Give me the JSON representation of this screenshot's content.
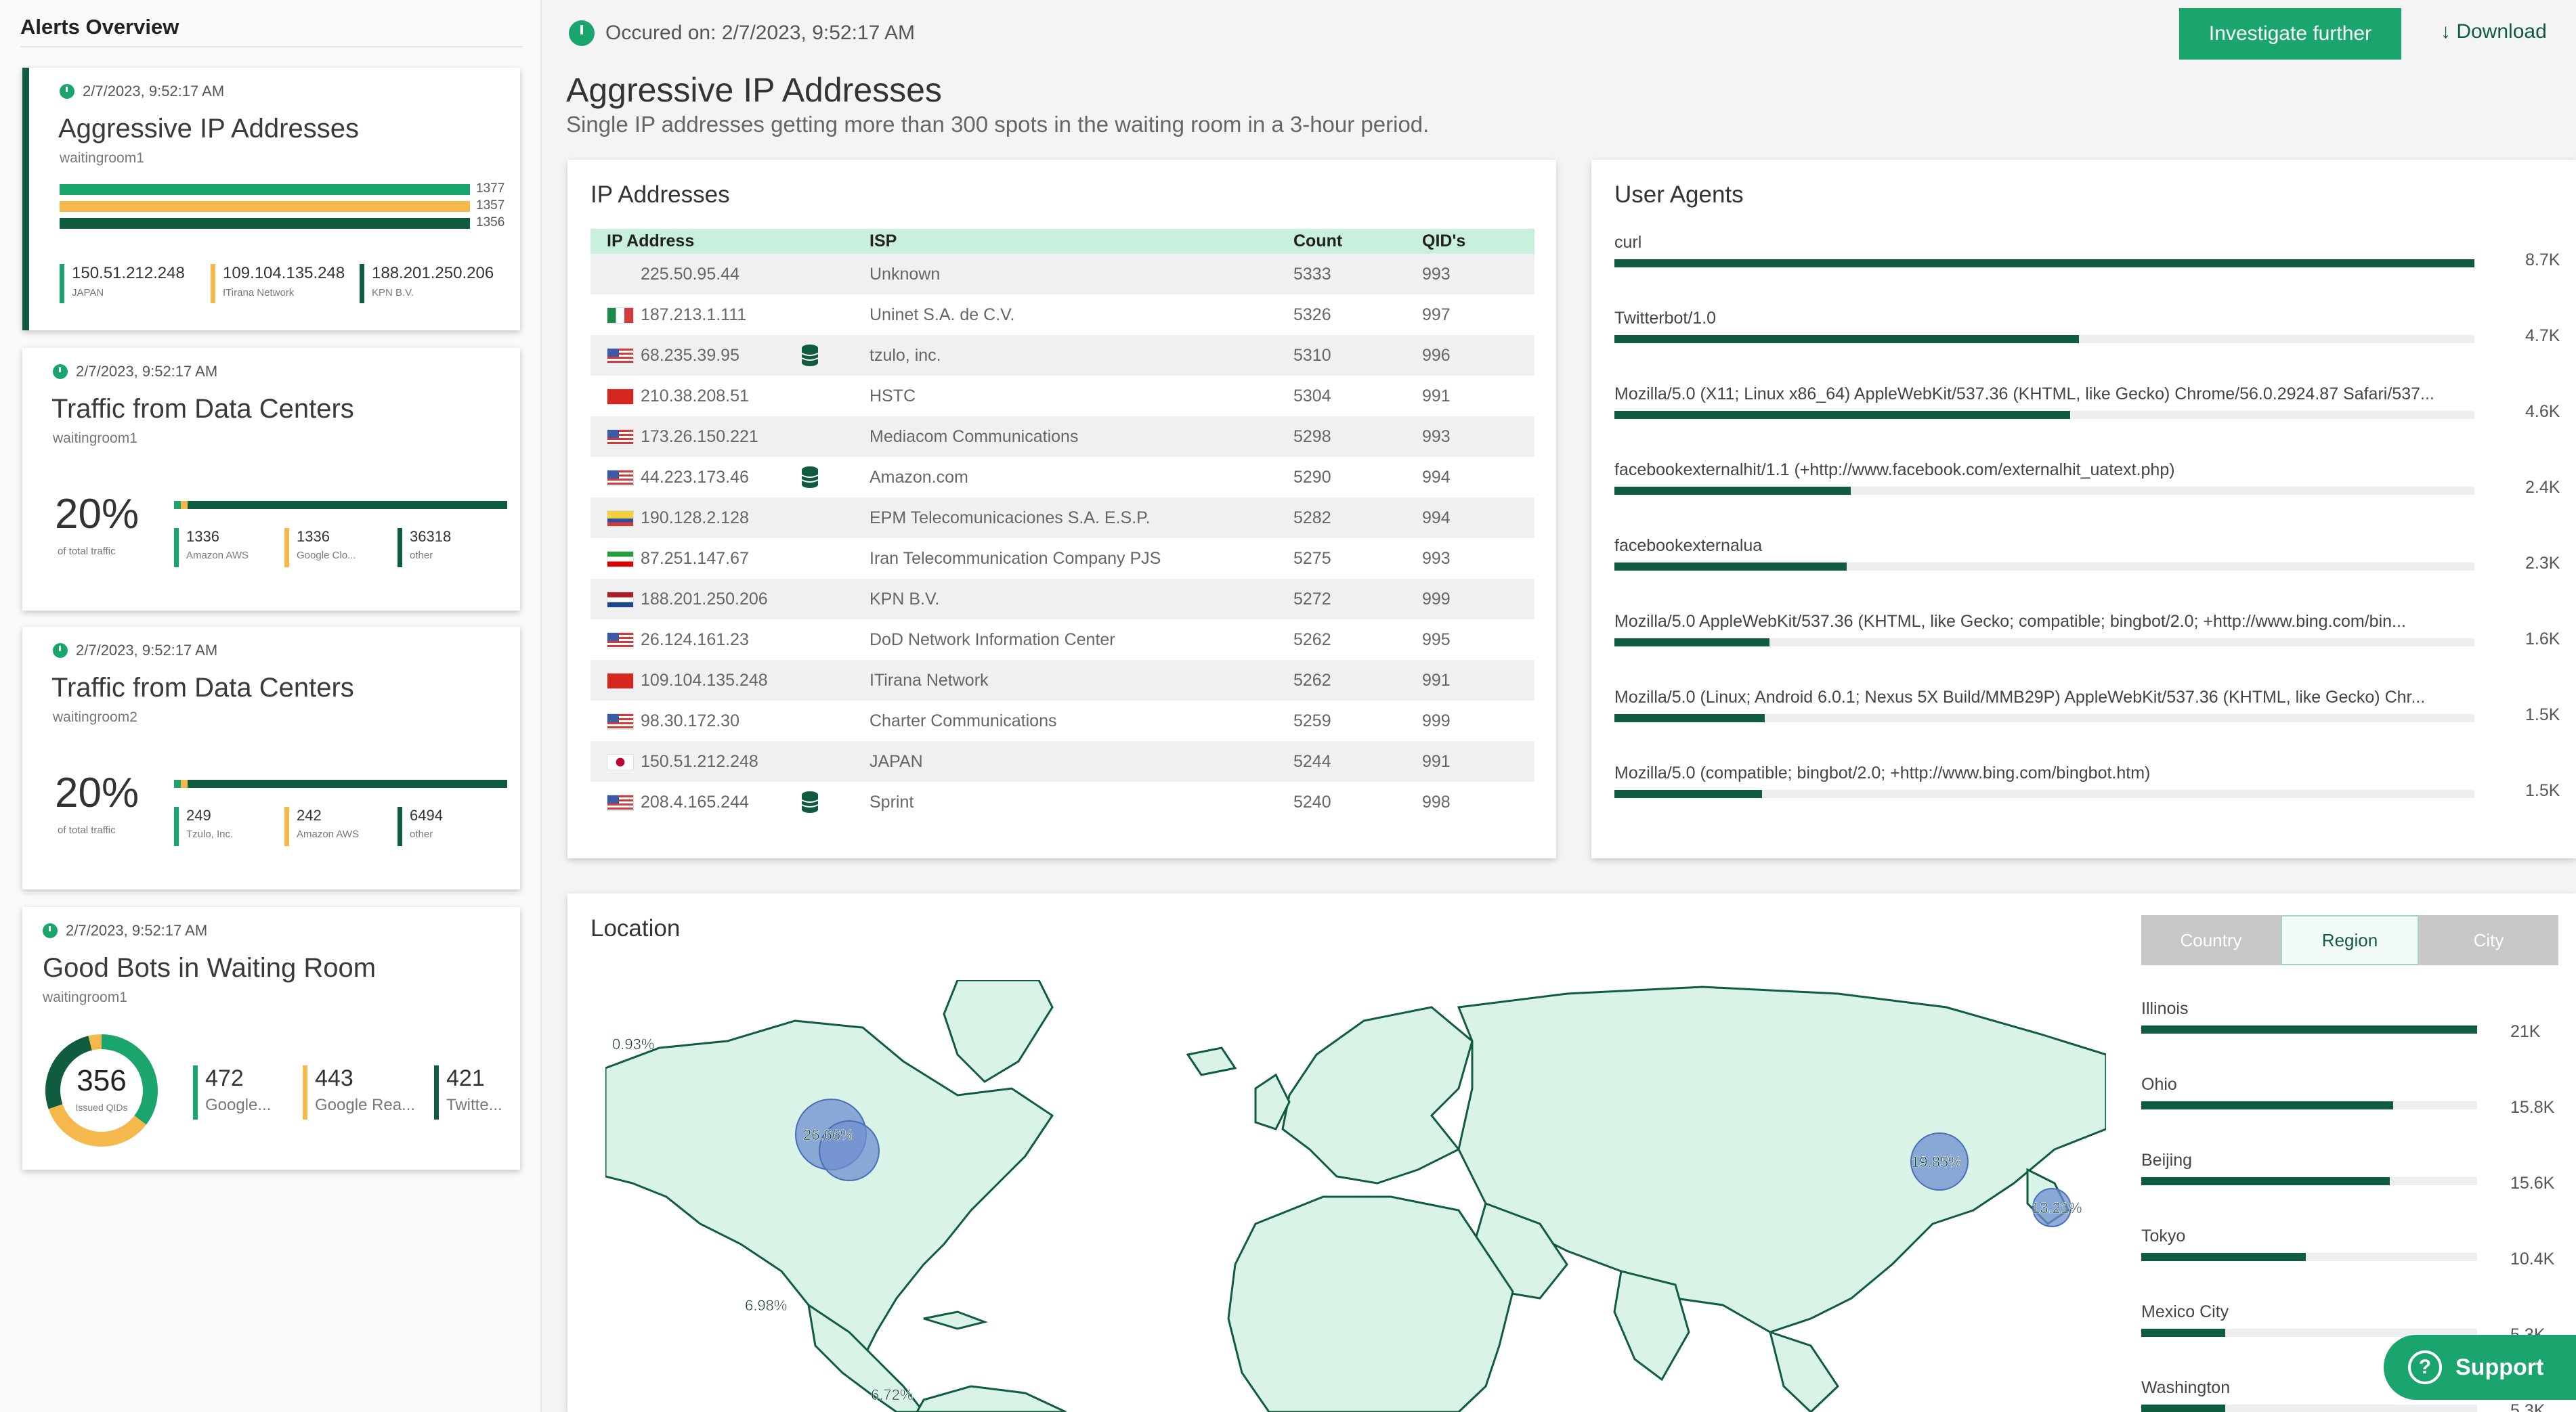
{
  "sidebar": {
    "title": "Alerts Overview",
    "cards": [
      {
        "time": "2/7/2023, 9:52:17 AM",
        "title": "Aggressive IP Addresses",
        "sub": "waitingroom1",
        "bars": [
          {
            "value": 1377,
            "label": "1377",
            "color": "#1aa56f"
          },
          {
            "value": 1357,
            "label": "1357",
            "color": "#f5b84d"
          },
          {
            "value": 1356,
            "label": "1356",
            "color": "#0f5c3e"
          }
        ],
        "stats": [
          {
            "v1": "150.51.212.248",
            "v2": "JAPAN",
            "color": "#1aa56f"
          },
          {
            "v1": "109.104.135.248",
            "v2": "ITirana Network",
            "color": "#f5b84d"
          },
          {
            "v1": "188.201.250.206",
            "v2": "KPN B.V.",
            "color": "#0f5c3e"
          }
        ]
      },
      {
        "time": "2/7/2023, 9:52:17 AM",
        "title": "Traffic from Data Centers",
        "sub": "waitingroom1",
        "pct": "20%",
        "pct_caption": "of total traffic",
        "stats": [
          {
            "v1": "1336",
            "v2": "Amazon AWS",
            "color": "#1aa56f"
          },
          {
            "v1": "1336",
            "v2": "Google Clo...",
            "color": "#f5b84d"
          },
          {
            "v1": "36318",
            "v2": "other",
            "color": "#0f5c3e"
          }
        ]
      },
      {
        "time": "2/7/2023, 9:52:17 AM",
        "title": "Traffic from Data Centers",
        "sub": "waitingroom2",
        "pct": "20%",
        "pct_caption": "of total traffic",
        "stats": [
          {
            "v1": "249",
            "v2": "Tzulo, Inc.",
            "color": "#1aa56f"
          },
          {
            "v1": "242",
            "v2": "Amazon AWS",
            "color": "#f5b84d"
          },
          {
            "v1": "6494",
            "v2": "other",
            "color": "#0f5c3e"
          }
        ]
      },
      {
        "time": "2/7/2023, 9:52:17 AM",
        "title": "Good Bots in Waiting Room",
        "sub": "waitingroom1",
        "donut_value": "356",
        "donut_caption": "Issued QIDs",
        "stats": [
          {
            "v1": "472",
            "v2": "Google...",
            "color": "#1aa56f"
          },
          {
            "v1": "443",
            "v2": "Google Rea...",
            "color": "#f5b84d"
          },
          {
            "v1": "421",
            "v2": "Twitte...",
            "color": "#0f5c3e"
          }
        ]
      }
    ]
  },
  "header": {
    "occurred": "Occured on: 2/7/2023, 9:52:17 AM",
    "investigate_label": "Investigate further",
    "download_label": "↓ Download",
    "title": "Aggressive IP Addresses",
    "description": "Single IP addresses getting more than 300 spots in the waiting room in a 3-hour period."
  },
  "ip_panel": {
    "title": "IP Addresses",
    "columns": [
      "IP Address",
      "ISP",
      "Count",
      "QID's"
    ],
    "rows": [
      {
        "ip": "225.50.95.44",
        "flag": "none",
        "db": false,
        "isp": "Unknown",
        "count": "5333",
        "qids": "993"
      },
      {
        "ip": "187.213.1.111",
        "flag": "mx",
        "db": false,
        "isp": "Uninet S.A. de C.V.",
        "count": "5326",
        "qids": "997"
      },
      {
        "ip": "68.235.39.95",
        "flag": "us",
        "db": true,
        "isp": "tzulo, inc.",
        "count": "5310",
        "qids": "996"
      },
      {
        "ip": "210.38.208.51",
        "flag": "cn",
        "db": false,
        "isp": "HSTC",
        "count": "5304",
        "qids": "991"
      },
      {
        "ip": "173.26.150.221",
        "flag": "us",
        "db": false,
        "isp": "Mediacom Communications",
        "count": "5298",
        "qids": "993"
      },
      {
        "ip": "44.223.173.46",
        "flag": "us",
        "db": true,
        "isp": "Amazon.com",
        "count": "5290",
        "qids": "994"
      },
      {
        "ip": "190.128.2.128",
        "flag": "co",
        "db": false,
        "isp": "EPM Telecomunicaciones S.A. E.S.P.",
        "count": "5282",
        "qids": "994"
      },
      {
        "ip": "87.251.147.67",
        "flag": "ir",
        "db": false,
        "isp": "Iran Telecommunication Company PJS",
        "count": "5275",
        "qids": "993"
      },
      {
        "ip": "188.201.250.206",
        "flag": "nl",
        "db": false,
        "isp": "KPN B.V.",
        "count": "5272",
        "qids": "999"
      },
      {
        "ip": "26.124.161.23",
        "flag": "us",
        "db": false,
        "isp": "DoD Network Information Center",
        "count": "5262",
        "qids": "995"
      },
      {
        "ip": "109.104.135.248",
        "flag": "al",
        "db": false,
        "isp": "ITirana Network",
        "count": "5262",
        "qids": "991"
      },
      {
        "ip": "98.30.172.30",
        "flag": "us",
        "db": false,
        "isp": "Charter Communications",
        "count": "5259",
        "qids": "999"
      },
      {
        "ip": "150.51.212.248",
        "flag": "jp",
        "db": false,
        "isp": "JAPAN",
        "count": "5244",
        "qids": "991"
      },
      {
        "ip": "208.4.165.244",
        "flag": "us",
        "db": true,
        "isp": "Sprint",
        "count": "5240",
        "qids": "998"
      }
    ]
  },
  "ua_panel": {
    "title": "User Agents",
    "rows": [
      {
        "label": "curl",
        "value": "8.7K",
        "fraction": 1.0
      },
      {
        "label": "Twitterbot/1.0",
        "value": "4.7K",
        "fraction": 0.54
      },
      {
        "label": "Mozilla/5.0 (X11; Linux x86_64) AppleWebKit/537.36 (KHTML, like Gecko) Chrome/56.0.2924.87 Safari/537...",
        "value": "4.6K",
        "fraction": 0.53
      },
      {
        "label": "facebookexternalhit/1.1 (+http://www.facebook.com/externalhit_uatext.php)",
        "value": "2.4K",
        "fraction": 0.275
      },
      {
        "label": "facebookexternalua",
        "value": "2.3K",
        "fraction": 0.27
      },
      {
        "label": "Mozilla/5.0 AppleWebKit/537.36 (KHTML, like Gecko; compatible; bingbot/2.0; +http://www.bing.com/bin...",
        "value": "1.6K",
        "fraction": 0.18
      },
      {
        "label": "Mozilla/5.0 (Linux; Android 6.0.1; Nexus 5X Build/MMB29P) AppleWebKit/537.36 (KHTML, like Gecko) Chr...",
        "value": "1.5K",
        "fraction": 0.175
      },
      {
        "label": "Mozilla/5.0 (compatible; bingbot/2.0; +http://www.bing.com/bingbot.htm)",
        "value": "1.5K",
        "fraction": 0.172
      }
    ]
  },
  "location_panel": {
    "title": "Location",
    "segments": [
      "Country",
      "Region",
      "City"
    ],
    "selected_segment": "Region",
    "map_labels": [
      "0.93%",
      "26.66%",
      "19.85%",
      "13.21%",
      "6.98%",
      "6.72%"
    ],
    "rows": [
      {
        "label": "Illinois",
        "value": "21K",
        "fraction": 1.0
      },
      {
        "label": "Ohio",
        "value": "15.8K",
        "fraction": 0.75
      },
      {
        "label": "Beijing",
        "value": "15.6K",
        "fraction": 0.74
      },
      {
        "label": "Tokyo",
        "value": "10.4K",
        "fraction": 0.49
      },
      {
        "label": "Mexico City",
        "value": "5.3K",
        "fraction": 0.25
      },
      {
        "label": "Washington",
        "value": "5.3K",
        "fraction": 0.25
      }
    ]
  },
  "support": {
    "label": "Support"
  },
  "colors": {
    "accent": "#1aa56f",
    "dark": "#0f5c3e",
    "amber": "#f5b84d",
    "map_land": "#d9f3e6",
    "map_bubble": "#6f8fcf"
  }
}
